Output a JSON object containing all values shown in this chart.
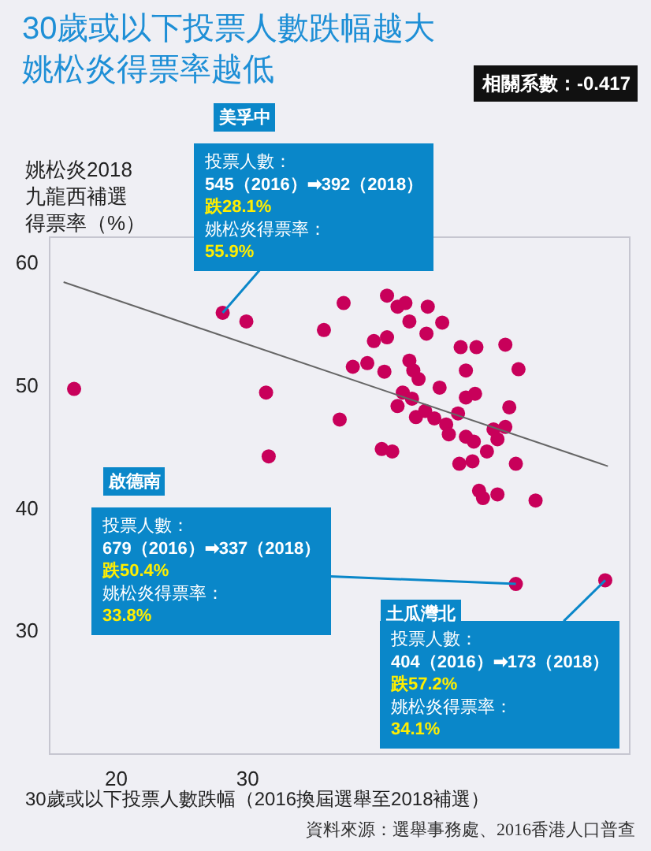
{
  "chart_data": {
    "type": "scatter",
    "title": "30歲或以下投票人數跌幅越大姚松炎得票率越低",
    "xlabel": "30歲或以下投票人數跌幅（2016換屆選舉至2018補選）",
    "ylabel": "姚松炎2018九龍西補選得票率（%）",
    "xlim": [
      15,
      59
    ],
    "ylim": [
      20,
      62
    ],
    "xticks": [
      20,
      30
    ],
    "yticks": [
      30,
      40,
      50,
      60
    ],
    "grid": false,
    "marker": "circle",
    "series": [
      {
        "color": "#c8005a",
        "x": [
          16.8,
          28.1,
          29.9,
          31.4,
          31.6,
          35.8,
          37.0,
          37.3,
          38.0,
          39.1,
          39.6,
          40.6,
          40.6,
          40.2,
          41.0,
          40.4,
          41.4,
          42.0,
          42.3,
          42.3,
          42.6,
          43.0,
          41.4,
          41.8,
          42.5,
          42.8,
          43.5,
          44.2,
          43.6,
          43.7,
          44.6,
          44.8,
          45.1,
          45.3,
          46.0,
          46.1,
          46.2,
          46.6,
          46.6,
          46.6,
          47.1,
          47.2,
          47.3,
          47.4,
          47.6,
          47.9,
          48.2,
          48.7,
          49.0,
          49.0,
          49.6,
          49.6,
          49.9,
          50.4,
          50.6,
          51.9,
          50.4,
          57.2
        ],
        "values": [
          49.7,
          55.9,
          55.2,
          49.4,
          44.2,
          54.5,
          47.2,
          56.7,
          51.5,
          51.8,
          53.6,
          53.9,
          57.3,
          44.8,
          44.6,
          51.1,
          56.4,
          56.7,
          55.2,
          52.0,
          51.2,
          50.5,
          48.3,
          49.4,
          48.9,
          47.4,
          47.9,
          47.3,
          54.2,
          56.4,
          49.8,
          55.1,
          46.8,
          46.0,
          47.7,
          43.6,
          53.1,
          51.2,
          45.8,
          49.0,
          43.8,
          45.4,
          49.3,
          53.1,
          41.4,
          40.8,
          44.6,
          46.4,
          41.1,
          45.6,
          53.3,
          46.6,
          48.2,
          43.6,
          51.3,
          40.6,
          33.8,
          34.1
        ]
      },
      {
        "type": "line",
        "color": "#666666",
        "marker": "none",
        "x": [
          16.0,
          57.4
        ],
        "values": [
          58.4,
          43.4
        ]
      }
    ],
    "annotations": [
      "美孚中",
      {
        "text": "投票人數：\n545（2016）➡392（2018）跌28.1%\n姚松炎得票率：\n55.9%",
        "x": 28.1,
        "y": 55.9
      },
      "啟德南",
      {
        "text": "投票人數：\n679（2016）➡337（2018）跌50.4%\n姚松炎得票率：\n33.8%",
        "x": 50.4,
        "y": 33.8
      },
      "土瓜灣北",
      {
        "text": "投票人數：\n404（2016）➡173（2018）跌57.2%\n姚松炎得票率：\n34.1%",
        "x": 57.2,
        "y": 34.1
      },
      "相關系數：-0.417",
      "資料來源：選舉事務處、2016香港人口普查"
    ]
  }
}
